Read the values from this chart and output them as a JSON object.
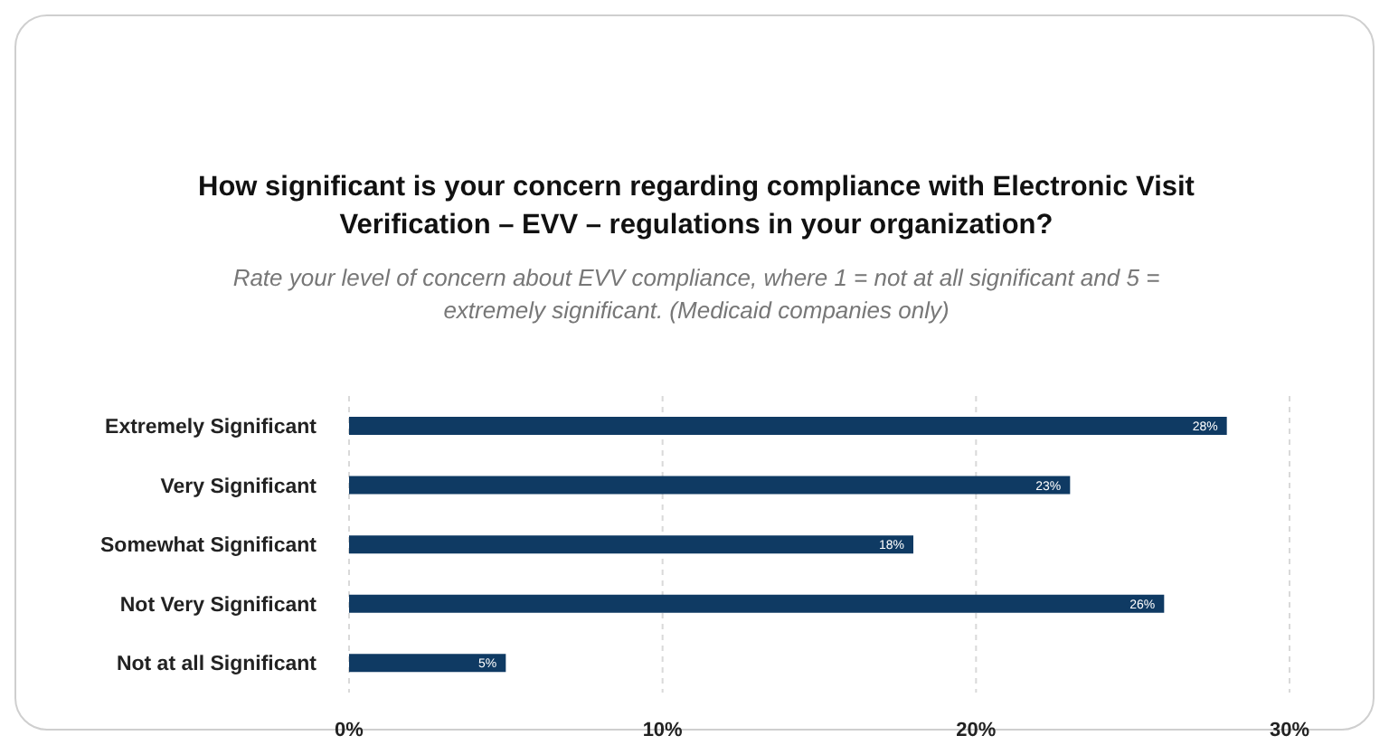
{
  "chart_data": {
    "type": "bar",
    "orientation": "horizontal",
    "title": "How significant is your concern regarding compliance with Electronic Visit Verification – EVV – regulations in your organization?",
    "subtitle": "Rate your level of concern about EVV compliance, where 1 = not at all significant and 5 = extremely significant. (Medicaid companies only)",
    "categories": [
      "Extremely Significant",
      "Very Significant",
      "Somewhat Significant",
      "Not Very Significant",
      "Not at all Significant"
    ],
    "values": [
      28,
      23,
      18,
      26,
      5
    ],
    "value_labels": [
      "28%",
      "23%",
      "18%",
      "26%",
      "5%"
    ],
    "color": "#0f3a63",
    "xlim": [
      0,
      30
    ],
    "xticks": [
      {
        "value": 0,
        "label": "0%"
      },
      {
        "value": 10,
        "label": "10%"
      },
      {
        "value": 20,
        "label": "20%"
      },
      {
        "value": 30,
        "label": "30%"
      }
    ],
    "grid": "x"
  }
}
